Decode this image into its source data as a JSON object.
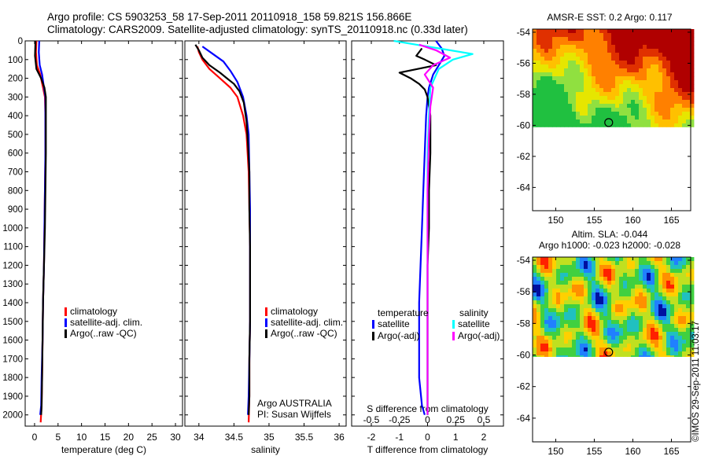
{
  "header": {
    "line1": "Argo profile: CS 5903253_58 17-Sep-2011 20110918_158 59.821S 156.866E",
    "line2": "Climatology: CARS2009. Satellite-adjusted climatology: synTS_20110918.nc (0.33d later)"
  },
  "colors": {
    "climatology": "#ff0000",
    "satellite": "#0000ff",
    "argo": "#000000",
    "sat_salinity": "#00ffff",
    "argo_salinity": "#ff00ff"
  },
  "depth_ticks": [
    0,
    100,
    200,
    300,
    400,
    500,
    600,
    700,
    800,
    900,
    1000,
    1100,
    1200,
    1300,
    1400,
    1500,
    1600,
    1700,
    1800,
    1900,
    2000
  ],
  "chart_data": [
    {
      "type": "line",
      "id": "temperature",
      "xlabel": "temperature (deg C)",
      "xlim": [
        -2,
        31.5
      ],
      "ylim": [
        0,
        2060
      ],
      "x_ticks": [
        0,
        5,
        10,
        15,
        20,
        25,
        30
      ],
      "legend": [
        "climatology",
        "satellite-adj. clim.",
        "Argo(..raw -QC)"
      ],
      "series": [
        {
          "name": "climatology",
          "color": "#ff0000",
          "points": [
            [
              0.4,
              0
            ],
            [
              0.3,
              60
            ],
            [
              0.5,
              130
            ],
            [
              1.2,
              180
            ],
            [
              1.8,
              250
            ],
            [
              2.2,
              300
            ],
            [
              2.3,
              400
            ],
            [
              2.3,
              600
            ],
            [
              2.2,
              800
            ],
            [
              2.1,
              1000
            ],
            [
              2.0,
              1200
            ],
            [
              1.8,
              1400
            ],
            [
              1.7,
              1600
            ],
            [
              1.6,
              1800
            ],
            [
              1.5,
              1950
            ],
            [
              1.3,
              2040
            ]
          ]
        },
        {
          "name": "satellite-adj. clim.",
          "color": "#0000ff",
          "points": [
            [
              1.0,
              0
            ],
            [
              0.9,
              60
            ],
            [
              1.1,
              130
            ],
            [
              1.6,
              180
            ],
            [
              2.0,
              250
            ],
            [
              2.3,
              300
            ],
            [
              2.3,
              400
            ],
            [
              2.3,
              600
            ],
            [
              2.2,
              800
            ],
            [
              2.1,
              1000
            ],
            [
              2.0,
              1200
            ],
            [
              1.8,
              1400
            ],
            [
              1.7,
              1600
            ],
            [
              1.5,
              1800
            ],
            [
              1.4,
              1950
            ],
            [
              1.2,
              2000
            ]
          ]
        },
        {
          "name": "Argo(..raw -QC)",
          "color": "#000000",
          "points": [
            [
              0.2,
              0
            ],
            [
              0.1,
              80
            ],
            [
              0.4,
              150
            ],
            [
              1.4,
              200
            ],
            [
              2.1,
              250
            ],
            [
              2.4,
              300
            ],
            [
              2.4,
              400
            ],
            [
              2.4,
              600
            ],
            [
              2.3,
              800
            ],
            [
              2.2,
              1000
            ],
            [
              2.0,
              1200
            ],
            [
              1.8,
              1400
            ],
            [
              1.7,
              1600
            ],
            [
              1.6,
              1800
            ],
            [
              1.5,
              1950
            ],
            [
              1.4,
              2000
            ]
          ]
        }
      ]
    },
    {
      "type": "line",
      "id": "salinity",
      "xlabel": "salinity",
      "xlim": [
        33.8,
        36.1
      ],
      "ylim": [
        0,
        2060
      ],
      "x_ticks": [
        34,
        34.5,
        35,
        35.5,
        36
      ],
      "legend": [
        "climatology",
        "satellite-adj. clim.",
        "Argo(..raw -QC)"
      ],
      "annotation": [
        "Argo AUSTRALIA",
        "PI: Susan Wijffels"
      ],
      "series": [
        {
          "name": "climatology",
          "color": "#ff0000",
          "points": [
            [
              33.98,
              30
            ],
            [
              34.0,
              60
            ],
            [
              34.05,
              100
            ],
            [
              34.15,
              150
            ],
            [
              34.3,
              200
            ],
            [
              34.45,
              250
            ],
            [
              34.55,
              300
            ],
            [
              34.63,
              400
            ],
            [
              34.68,
              500
            ],
            [
              34.71,
              700
            ],
            [
              34.72,
              900
            ],
            [
              34.73,
              1100
            ],
            [
              34.73,
              1300
            ],
            [
              34.73,
              1500
            ],
            [
              34.72,
              1700
            ],
            [
              34.72,
              1900
            ],
            [
              34.71,
              2040
            ]
          ]
        },
        {
          "name": "satellite-adj. clim.",
          "color": "#0000ff",
          "points": [
            [
              34.05,
              30
            ],
            [
              34.2,
              70
            ],
            [
              34.35,
              110
            ],
            [
              34.45,
              160
            ],
            [
              34.55,
              220
            ],
            [
              34.63,
              300
            ],
            [
              34.68,
              400
            ],
            [
              34.71,
              500
            ],
            [
              34.72,
              700
            ],
            [
              34.73,
              900
            ],
            [
              34.73,
              1100
            ],
            [
              34.73,
              1300
            ],
            [
              34.73,
              1500
            ],
            [
              34.72,
              1700
            ],
            [
              34.71,
              1900
            ],
            [
              34.7,
              2000
            ]
          ]
        },
        {
          "name": "Argo(..raw -QC)",
          "color": "#000000",
          "points": [
            [
              33.95,
              20
            ],
            [
              34.0,
              50
            ],
            [
              34.05,
              90
            ],
            [
              34.15,
              130
            ],
            [
              34.3,
              170
            ],
            [
              34.4,
              200
            ],
            [
              34.5,
              230
            ],
            [
              34.58,
              270
            ],
            [
              34.64,
              330
            ],
            [
              34.68,
              430
            ],
            [
              34.7,
              550
            ],
            [
              34.72,
              700
            ],
            [
              34.72,
              900
            ],
            [
              34.73,
              1100
            ],
            [
              34.73,
              1300
            ],
            [
              34.73,
              1500
            ],
            [
              34.72,
              1700
            ],
            [
              34.72,
              1900
            ],
            [
              34.71,
              2000
            ]
          ]
        }
      ]
    },
    {
      "type": "line",
      "id": "difference",
      "xlabel": "T difference from climatology",
      "xlabel_top": "S difference from climatology",
      "xlim": [
        -2.7,
        2.7
      ],
      "ylim": [
        0,
        2060
      ],
      "x_ticks": [
        -2,
        -1,
        0,
        1,
        2
      ],
      "x_ticks_s": [
        "-0.5",
        "-0.25",
        "0",
        "0.25",
        "0.5"
      ],
      "x_ticks_s_values": [
        -0.5,
        -0.25,
        0,
        0.25,
        0.5
      ],
      "s_to_t_scale": 4,
      "legend_left_title": "temperature",
      "legend_right_title": "salinity",
      "legend": [
        "satellite",
        "Argo(-adj)",
        "satellite",
        "Argo(-adj)"
      ],
      "series": [
        {
          "name": "satellite",
          "color": "#0000ff",
          "points": [
            [
              0.3,
              0
            ],
            [
              0.5,
              40
            ],
            [
              0.6,
              80
            ],
            [
              0.4,
              130
            ],
            [
              0.2,
              180
            ],
            [
              0.05,
              250
            ],
            [
              0.0,
              300
            ],
            [
              -0.05,
              400
            ],
            [
              -0.1,
              600
            ],
            [
              -0.15,
              800
            ],
            [
              -0.2,
              1000
            ],
            [
              -0.25,
              1200
            ],
            [
              -0.3,
              1400
            ],
            [
              -0.3,
              1600
            ],
            [
              -0.3,
              1800
            ],
            [
              -0.2,
              1950
            ],
            [
              -0.1,
              2000
            ]
          ]
        },
        {
          "name": "Argo(-adj)",
          "color": "#000000",
          "points": [
            [
              -0.2,
              40
            ],
            [
              -0.4,
              80
            ],
            [
              -0.1,
              100
            ],
            [
              0.3,
              130
            ],
            [
              -1.0,
              170
            ],
            [
              -0.6,
              200
            ],
            [
              -0.3,
              230
            ],
            [
              -0.1,
              260
            ],
            [
              0.0,
              300
            ],
            [
              0.1,
              400
            ],
            [
              0.1,
              600
            ],
            [
              0.05,
              800
            ],
            [
              0.05,
              1000
            ],
            [
              0.0,
              1200
            ],
            [
              0.0,
              1400
            ],
            [
              0.0,
              1600
            ],
            [
              0.0,
              1800
            ],
            [
              0.0,
              2000
            ]
          ]
        },
        {
          "name": "satellite",
          "color": "#00ffff",
          "points": [
            [
              -1.2,
              0
            ],
            [
              -0.4,
              20
            ],
            [
              0.4,
              40
            ],
            [
              1.6,
              70
            ],
            [
              0.9,
              100
            ],
            [
              0.4,
              150
            ],
            [
              0.1,
              250
            ],
            [
              0.05,
              400
            ],
            [
              0.0,
              600
            ],
            [
              0.0,
              800
            ],
            [
              0.0,
              1000
            ],
            [
              0.0,
              1200
            ],
            [
              0.0,
              1400
            ],
            [
              0.0,
              1600
            ],
            [
              0.0,
              1800
            ],
            [
              0.0,
              2000
            ]
          ]
        },
        {
          "name": "Argo(-adj)",
          "color": "#ff00ff",
          "points": [
            [
              -0.3,
              20
            ],
            [
              0.3,
              50
            ],
            [
              0.8,
              90
            ],
            [
              0.2,
              130
            ],
            [
              -0.1,
              180
            ],
            [
              0.2,
              250
            ],
            [
              0.1,
              350
            ],
            [
              0.05,
              500
            ],
            [
              0.0,
              800
            ],
            [
              0.0,
              1200
            ],
            [
              0.0,
              1600
            ],
            [
              0.0,
              2000
            ]
          ]
        }
      ]
    },
    {
      "type": "heatmap",
      "id": "sst",
      "title": "AMSR-E SST: 0.2 Argo: 0.117",
      "xlim": [
        147,
        167.5
      ],
      "ylim": [
        -65.5,
        -53.8
      ],
      "x_ticks": [
        150,
        155,
        160,
        165
      ],
      "y_ticks": [
        -54,
        -56,
        -58,
        -60,
        -62,
        -64
      ],
      "data_south_limit": -60.1,
      "argo_position": [
        156.87,
        -59.82
      ]
    },
    {
      "type": "heatmap",
      "id": "sla",
      "title": "Altim. SLA: -0.044",
      "subtitle": "Argo h1000: -0.023 h2000: -0.028",
      "xlim": [
        147,
        167.5
      ],
      "ylim": [
        -65.5,
        -53.8
      ],
      "x_ticks": [
        150,
        155,
        160,
        165
      ],
      "y_ticks": [
        -54,
        -56,
        -58,
        -60,
        -62,
        -64
      ],
      "data_south_limit": -60.1,
      "argo_position": [
        156.87,
        -59.82
      ]
    }
  ],
  "footer_stamp": "©IMOS 29-Sep-2011 11:03:17"
}
